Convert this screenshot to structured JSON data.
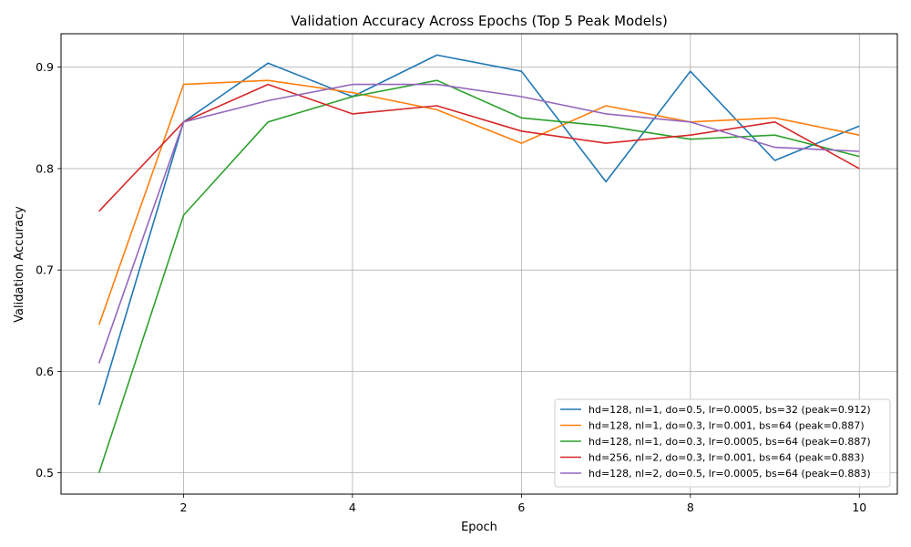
{
  "chart_data": {
    "type": "line",
    "title": "Validation Accuracy Across Epochs (Top 5 Peak Models)",
    "xlabel": "Epoch",
    "ylabel": "Validation Accuracy",
    "xlim": [
      0.55,
      10.45
    ],
    "ylim": [
      0.479,
      0.933
    ],
    "xticks": [
      2,
      4,
      6,
      8,
      10
    ],
    "yticks": [
      0.5,
      0.6,
      0.7,
      0.8,
      0.9
    ],
    "xtick_labels": [
      "2",
      "4",
      "6",
      "8",
      "10"
    ],
    "ytick_labels": [
      "0.5",
      "0.6",
      "0.7",
      "0.8",
      "0.9"
    ],
    "grid": true,
    "legend_position": "lower-right",
    "x": [
      1,
      2,
      3,
      4,
      5,
      6,
      7,
      8,
      9,
      10
    ],
    "series": [
      {
        "name": "hd=128, nl=1, do=0.5, lr=0.0005, bs=32 (peak=0.912)",
        "color": "#1f77b4",
        "values": [
          0.567,
          0.846,
          0.904,
          0.871,
          0.912,
          0.896,
          0.787,
          0.896,
          0.808,
          0.842
        ]
      },
      {
        "name": "hd=128, nl=1, do=0.3, lr=0.001, bs=64 (peak=0.887)",
        "color": "#ff7f0e",
        "values": [
          0.646,
          0.883,
          0.887,
          0.875,
          0.858,
          0.825,
          0.862,
          0.846,
          0.85,
          0.833
        ]
      },
      {
        "name": "hd=128, nl=1, do=0.3, lr=0.0005, bs=64 (peak=0.887)",
        "color": "#2ca02c",
        "values": [
          0.5,
          0.754,
          0.846,
          0.871,
          0.887,
          0.85,
          0.842,
          0.829,
          0.833,
          0.812
        ]
      },
      {
        "name": "hd=256, nl=2, do=0.3, lr=0.001, bs=64 (peak=0.883)",
        "color": "#d62728",
        "values": [
          0.758,
          0.846,
          0.883,
          0.854,
          0.862,
          0.837,
          0.825,
          0.833,
          0.846,
          0.8
        ]
      },
      {
        "name": "hd=128, nl=2, do=0.5, lr=0.0005, bs=64 (peak=0.883)",
        "color": "#9467bd",
        "values": [
          0.608,
          0.846,
          0.867,
          0.883,
          0.883,
          0.871,
          0.854,
          0.846,
          0.821,
          0.817
        ]
      }
    ]
  }
}
